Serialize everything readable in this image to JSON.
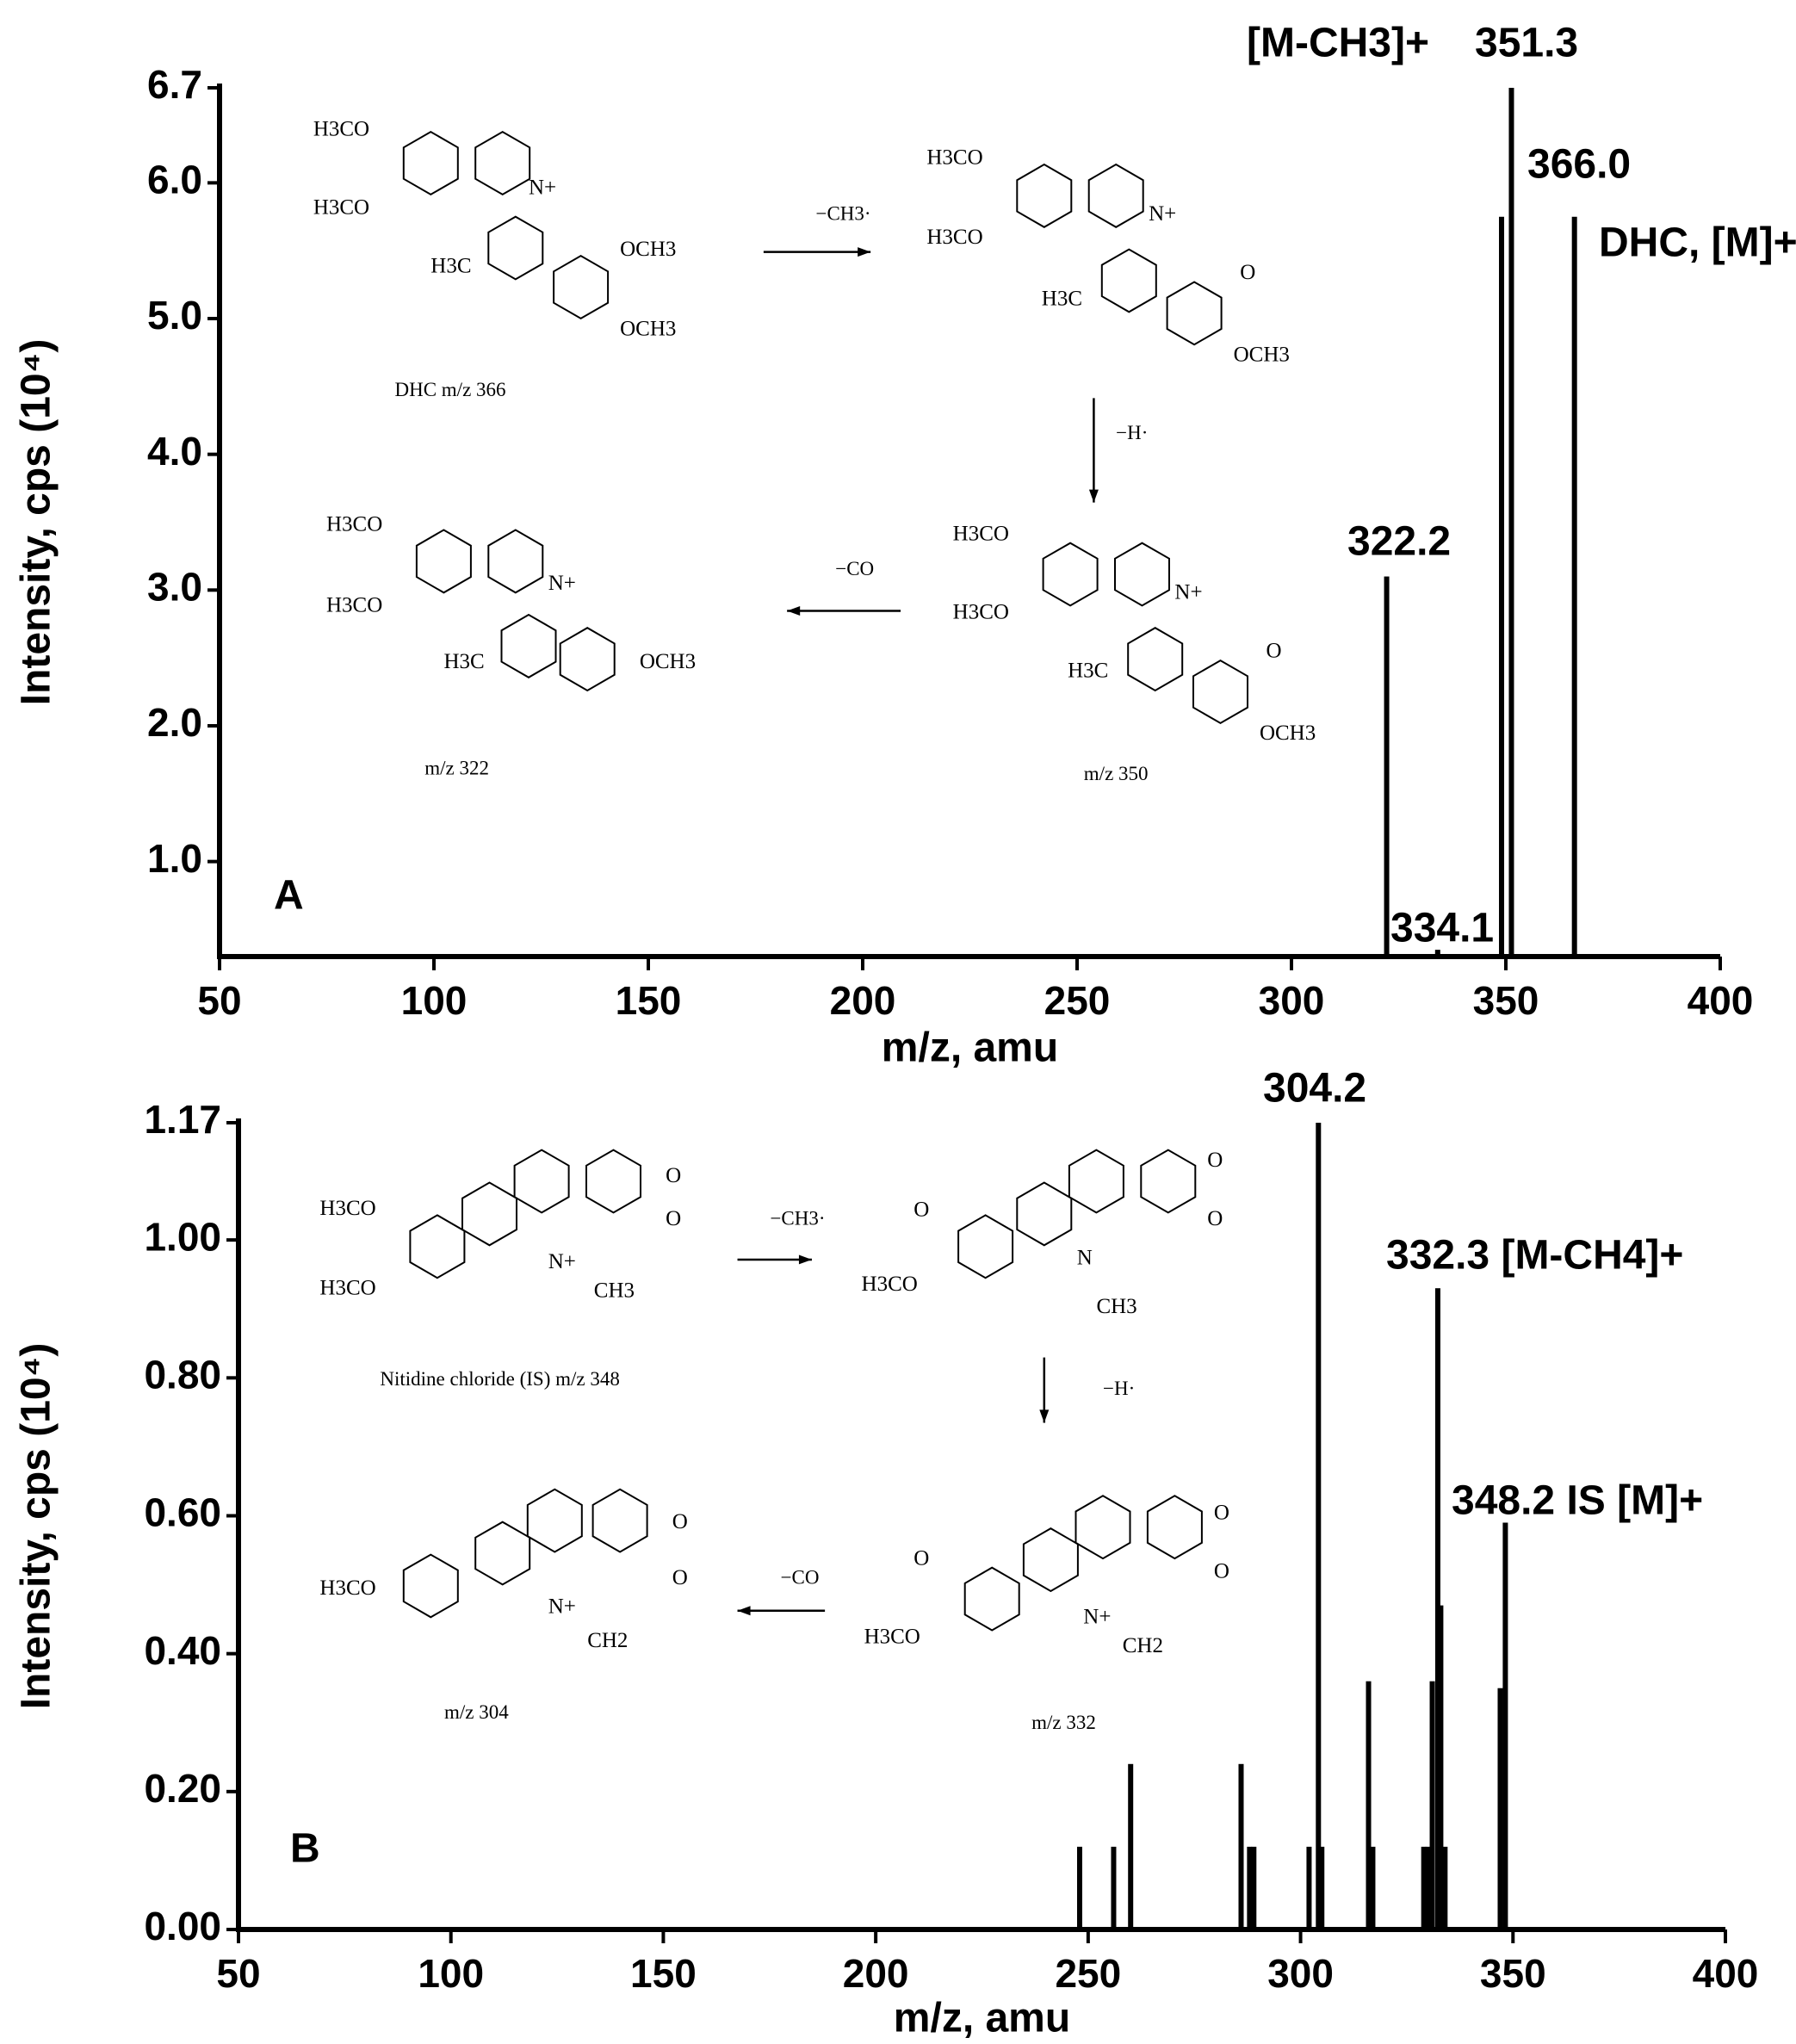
{
  "chart_data": [
    {
      "type": "bar",
      "panel_label": "A",
      "xlabel": "m/z, amu",
      "ylabel": "Intensity, cps (10⁴)",
      "xlim": [
        50,
        400
      ],
      "xticks": [
        50,
        100,
        150,
        200,
        250,
        300,
        350,
        400
      ],
      "ylim": [
        0.3,
        6.7
      ],
      "yticks": [
        {
          "value": 1,
          "label": "1.0"
        },
        {
          "value": 2,
          "label": "2.0"
        },
        {
          "value": 3,
          "label": "3.0"
        },
        {
          "value": 4,
          "label": "4.0"
        },
        {
          "value": 5,
          "label": "5.0"
        },
        {
          "value": 6,
          "label": "6.0"
        },
        6.7
      ],
      "color": "#000000",
      "x": [
        322.2,
        334.1,
        349.0,
        351.3,
        366.0
      ],
      "values": [
        3.1,
        0.35,
        5.75,
        6.7,
        5.75
      ],
      "annotations": [
        "[M-CH3]+",
        "351.3",
        "366.0",
        "DHC, [M]+",
        "322.2",
        "334.1"
      ],
      "structures": [
        {
          "caption": "DHC  m/z 366",
          "atoms": [
            "H3CO",
            "H3CO",
            "N+",
            "OCH3",
            "H3C",
            "OCH3"
          ]
        },
        {
          "caption": "",
          "atoms": [
            "H3CO",
            "H3CO",
            "N+",
            "O",
            "H3C",
            "OCH3"
          ]
        },
        {
          "caption": "m/z 350",
          "atoms": [
            "H3CO",
            "H3CO",
            "N+",
            "O",
            "H3C",
            "OCH3"
          ]
        },
        {
          "caption": "m/z 322",
          "atoms": [
            "H3CO",
            "H3CO",
            "N+",
            "H3C",
            "OCH3"
          ]
        }
      ],
      "arrows": [
        "−CH3·",
        "−H·",
        "−CO"
      ]
    },
    {
      "type": "bar",
      "panel_label": "B",
      "xlabel": "m/z,   amu",
      "ylabel": "Intensity, cps (10⁴)",
      "xlim": [
        50,
        400
      ],
      "xticks": [
        50,
        100,
        150,
        200,
        250,
        300,
        350,
        400
      ],
      "ylim": [
        0,
        1.17
      ],
      "yticks": [
        {
          "value": 0,
          "label": "0.00"
        },
        {
          "value": 0.2,
          "label": "0.20"
        },
        {
          "value": 0.4,
          "label": "0.40"
        },
        {
          "value": 0.6,
          "label": "0.60"
        },
        {
          "value": 0.8,
          "label": "0.80"
        },
        {
          "value": 1,
          "label": "1.00"
        },
        1.17
      ],
      "color": "#000000",
      "x": [
        248,
        256,
        260,
        286,
        288,
        289,
        302,
        304.2,
        305,
        316,
        317,
        329,
        330,
        331,
        332.3,
        333,
        334,
        347,
        348.2
      ],
      "values": [
        0.12,
        0.12,
        0.24,
        0.24,
        0.12,
        0.12,
        0.12,
        1.17,
        0.12,
        0.36,
        0.12,
        0.12,
        0.12,
        0.36,
        0.93,
        0.47,
        0.12,
        0.35,
        0.59
      ],
      "annotations": [
        "304.2",
        "332.3 [M-CH4]+",
        "348.2 IS [M]+"
      ],
      "structures": [
        {
          "caption": "Nitidine chloride (IS) m/z 348",
          "atoms": [
            "H3CO",
            "H3CO",
            "N+",
            "CH3",
            "O",
            "O"
          ]
        },
        {
          "caption": "",
          "atoms": [
            "O",
            "H3CO",
            "N",
            "CH3",
            "O",
            "O"
          ]
        },
        {
          "caption": "m/z 332",
          "atoms": [
            "O",
            "H3CO",
            "N+",
            "CH2",
            "O",
            "O"
          ]
        },
        {
          "caption": "m/z 304",
          "atoms": [
            "H3CO",
            "N+",
            "CH2",
            "O",
            "O"
          ]
        }
      ],
      "arrows": [
        "−CH3·",
        "−H·",
        "−CO"
      ]
    }
  ]
}
